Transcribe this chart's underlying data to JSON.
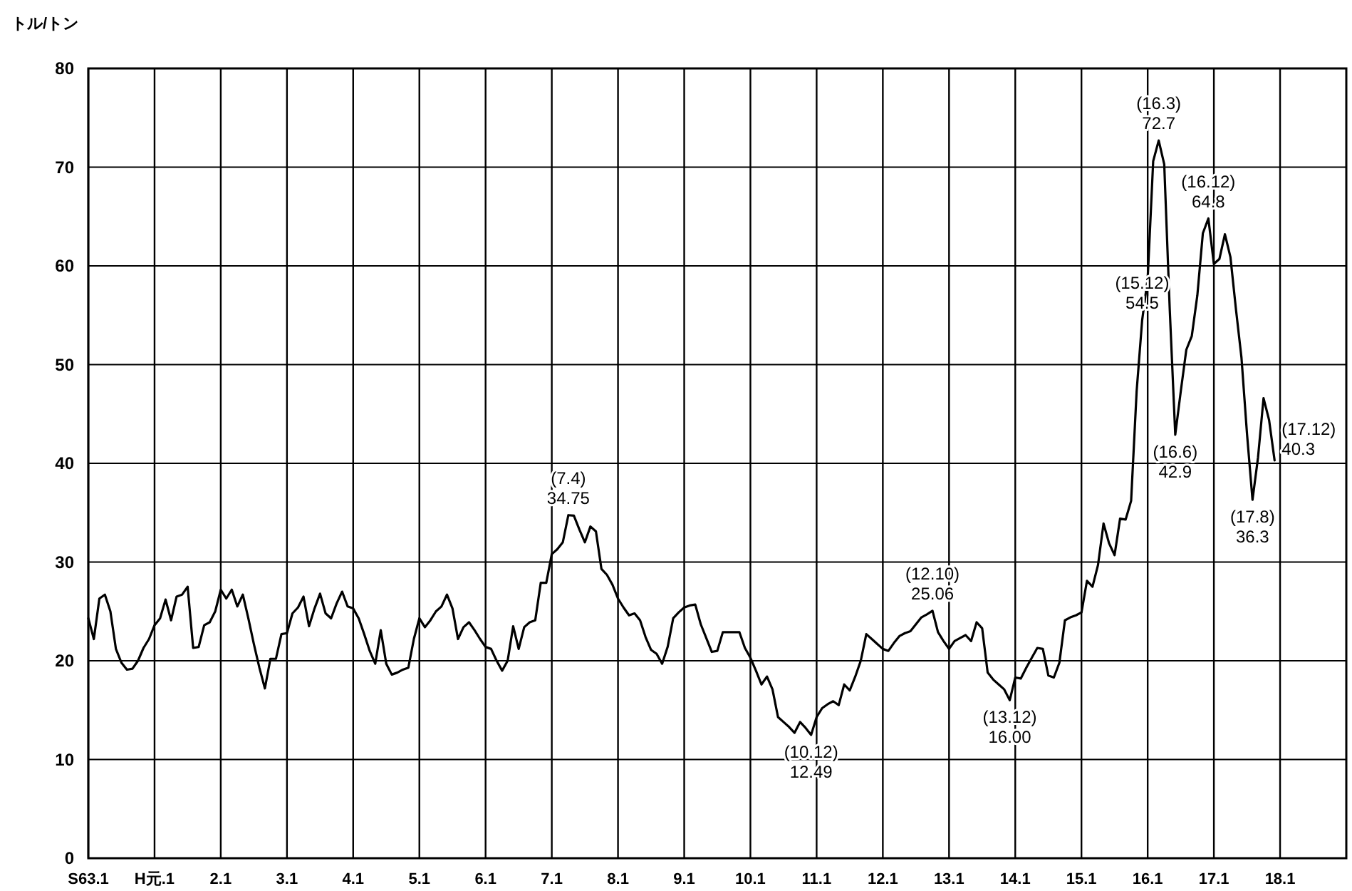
{
  "chart_data": {
    "type": "line",
    "ylabel": "トル/トン",
    "color": "#000000",
    "grid": true,
    "marker": "none",
    "line_style": "solid",
    "ylim": [
      0,
      80
    ],
    "yticks": [
      0,
      10,
      20,
      30,
      40,
      50,
      60,
      70,
      80
    ],
    "categories": [
      "S63.1",
      null,
      null,
      null,
      null,
      null,
      null,
      null,
      null,
      null,
      null,
      null,
      "H元.1",
      null,
      null,
      null,
      null,
      null,
      null,
      null,
      null,
      null,
      null,
      null,
      "2.1",
      null,
      null,
      null,
      null,
      null,
      null,
      null,
      null,
      null,
      null,
      null,
      "3.1",
      null,
      null,
      null,
      null,
      null,
      null,
      null,
      null,
      null,
      null,
      null,
      "4.1",
      null,
      null,
      null,
      null,
      null,
      null,
      null,
      null,
      null,
      null,
      null,
      "5.1",
      null,
      null,
      null,
      null,
      null,
      null,
      null,
      null,
      null,
      null,
      null,
      "6.1",
      null,
      null,
      null,
      null,
      null,
      null,
      null,
      null,
      null,
      null,
      null,
      "7.1",
      null,
      null,
      null,
      null,
      null,
      null,
      null,
      null,
      null,
      null,
      null,
      "8.1",
      null,
      null,
      null,
      null,
      null,
      null,
      null,
      null,
      null,
      null,
      null,
      "9.1",
      null,
      null,
      null,
      null,
      null,
      null,
      null,
      null,
      null,
      null,
      null,
      "10.1",
      null,
      null,
      null,
      null,
      null,
      null,
      null,
      null,
      null,
      null,
      null,
      "11.1",
      null,
      null,
      null,
      null,
      null,
      null,
      null,
      null,
      null,
      null,
      null,
      "12.1",
      null,
      null,
      null,
      null,
      null,
      null,
      null,
      null,
      null,
      null,
      null,
      "13.1",
      null,
      null,
      null,
      null,
      null,
      null,
      null,
      null,
      null,
      null,
      null,
      "14.1",
      null,
      null,
      null,
      null,
      null,
      null,
      null,
      null,
      null,
      null,
      null,
      "15.1",
      null,
      null,
      null,
      null,
      null,
      null,
      null,
      null,
      null,
      null,
      null,
      "16.1",
      null,
      null,
      null,
      null,
      null,
      null,
      null,
      null,
      null,
      null,
      null,
      "17.1",
      null,
      null,
      null,
      null,
      null,
      null,
      null,
      null,
      null,
      null,
      null,
      "18.1",
      null,
      null,
      null,
      null,
      null,
      null,
      null,
      null,
      null,
      null,
      null
    ],
    "values": [
      24.3,
      22.2,
      26.3,
      26.7,
      25.0,
      21.2,
      19.8,
      19.1,
      19.2,
      20.0,
      21.3,
      22.2,
      23.6,
      24.3,
      26.2,
      24.1,
      26.5,
      26.7,
      27.5,
      21.3,
      21.4,
      23.6,
      23.9,
      25.0,
      27.2,
      26.3,
      27.2,
      25.5,
      26.7,
      24.3,
      21.7,
      19.3,
      17.2,
      20.2,
      20.2,
      22.7,
      22.8,
      24.8,
      25.4,
      26.5,
      23.5,
      25.3,
      26.8,
      24.8,
      24.3,
      25.8,
      27.0,
      25.5,
      25.3,
      24.3,
      22.7,
      21.0,
      19.7,
      23.1,
      19.7,
      18.6,
      18.8,
      19.1,
      19.3,
      22.2,
      24.3,
      23.4,
      24.1,
      25.0,
      25.5,
      26.7,
      25.3,
      22.2,
      23.4,
      23.9,
      23.1,
      22.2,
      21.4,
      21.2,
      20.0,
      19.0,
      20.0,
      23.5,
      21.2,
      23.4,
      23.9,
      24.1,
      27.9,
      27.9,
      30.8,
      31.3,
      32.0,
      34.75,
      34.7,
      33.3,
      32.0,
      33.6,
      33.1,
      29.3,
      28.7,
      27.7,
      26.3,
      25.4,
      24.6,
      24.8,
      24.1,
      22.4,
      21.1,
      20.7,
      19.7,
      21.4,
      24.3,
      24.9,
      25.4,
      25.6,
      25.7,
      23.7,
      22.3,
      20.9,
      21.0,
      22.9,
      22.9,
      22.9,
      22.9,
      21.3,
      20.3,
      19.0,
      17.6,
      18.4,
      17.1,
      14.3,
      13.8,
      13.3,
      12.7,
      13.8,
      13.2,
      12.49,
      14.3,
      15.2,
      15.6,
      15.9,
      15.5,
      17.6,
      17.0,
      18.4,
      20.0,
      22.7,
      22.2,
      21.7,
      21.2,
      21.0,
      21.8,
      22.5,
      22.8,
      23.0,
      23.7,
      24.4,
      24.7,
      25.06,
      22.9,
      22.0,
      21.2,
      22.0,
      22.3,
      22.6,
      22.0,
      23.9,
      23.3,
      18.8,
      18.1,
      17.6,
      17.1,
      16.0,
      18.3,
      18.2,
      19.3,
      20.3,
      21.3,
      21.2,
      18.5,
      18.3,
      19.8,
      24.1,
      24.4,
      24.6,
      24.9,
      28.1,
      27.5,
      29.7,
      33.9,
      31.9,
      30.7,
      34.4,
      34.3,
      36.2,
      47.3,
      54.5,
      58.7,
      70.6,
      72.7,
      70.3,
      55.6,
      42.9,
      47.3,
      51.5,
      52.9,
      57.0,
      63.3,
      64.8,
      60.2,
      60.7,
      63.2,
      60.9,
      55.6,
      50.7,
      43.0,
      36.3,
      40.6,
      46.6,
      44.4,
      40.3,
      null,
      null,
      null,
      null,
      null,
      null,
      null,
      null,
      null,
      null,
      null,
      null
    ],
    "annotations": [
      {
        "text": "(7.4)\n34.75",
        "y": 34.75
      },
      {
        "text": "(10.12)\n12.49",
        "y": 12.49
      },
      {
        "text": "(12.10)\n25.06",
        "y": 25.06
      },
      {
        "text": "(13.12)\n16.00",
        "y": 16.0
      },
      {
        "text": "(15.12)\n54.5",
        "y": 54.5
      },
      {
        "text": "(16.3)\n72.7",
        "y": 72.7
      },
      {
        "text": "(16.6)\n42.9",
        "y": 42.9
      },
      {
        "text": "(16.12)\n64.8",
        "y": 64.8
      },
      {
        "text": "(17.8)\n36.3",
        "y": 36.3
      },
      "(17.12)\n40.3"
    ]
  }
}
